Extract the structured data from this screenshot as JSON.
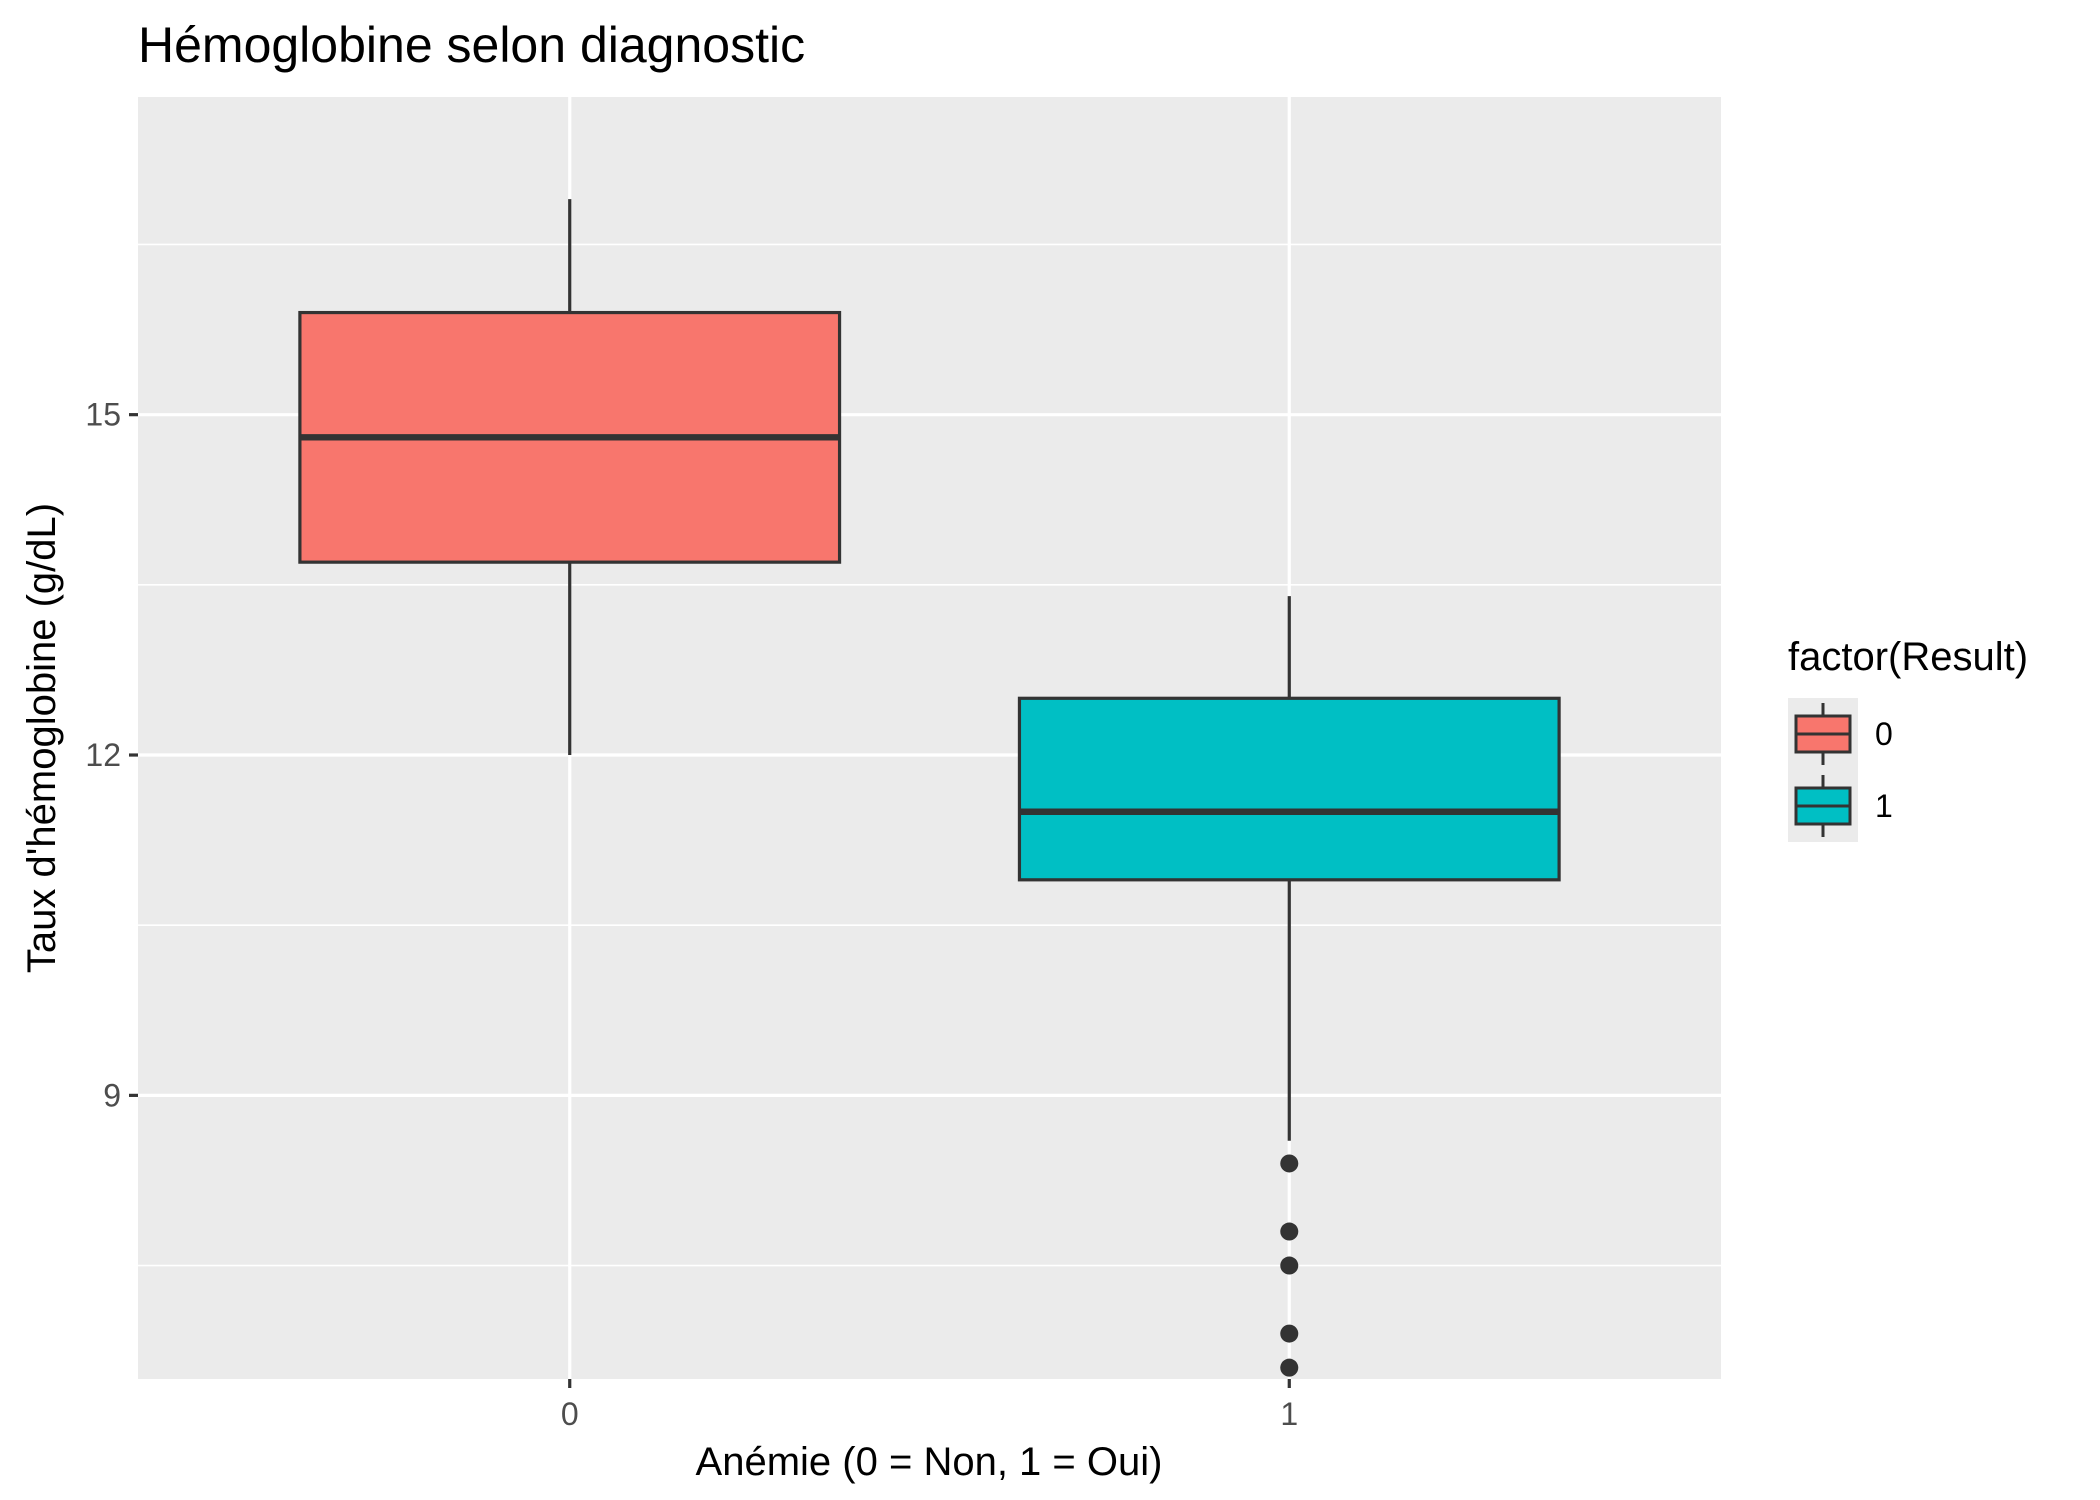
{
  "chart_data": {
    "type": "boxplot",
    "title": "Hémoglobine selon diagnostic",
    "xlabel": "Anémie (0 = Non, 1 = Oui)",
    "ylabel": "Taux d'hémoglobine (g/dL)",
    "categories": [
      "0",
      "1"
    ],
    "yticks": [
      9,
      12,
      15
    ],
    "ylim": [
      6.5,
      17.8
    ],
    "grid": true,
    "legend": {
      "title": "factor(Result)",
      "placement": "right",
      "entries": [
        {
          "label": "0",
          "color": "#F8766D"
        },
        {
          "label": "1",
          "color": "#00BFC4"
        }
      ]
    },
    "boxes": [
      {
        "category": "0",
        "color": "#F8766D",
        "whisker_low": 12.0,
        "q1": 13.7,
        "median": 14.8,
        "q3": 15.9,
        "whisker_high": 16.9,
        "outliers": []
      },
      {
        "category": "1",
        "color": "#00BFC4",
        "whisker_low": 8.6,
        "q1": 10.9,
        "median": 11.5,
        "q3": 12.5,
        "whisker_high": 13.4,
        "outliers": [
          8.4,
          7.8,
          7.5,
          6.9,
          6.6
        ]
      }
    ]
  }
}
